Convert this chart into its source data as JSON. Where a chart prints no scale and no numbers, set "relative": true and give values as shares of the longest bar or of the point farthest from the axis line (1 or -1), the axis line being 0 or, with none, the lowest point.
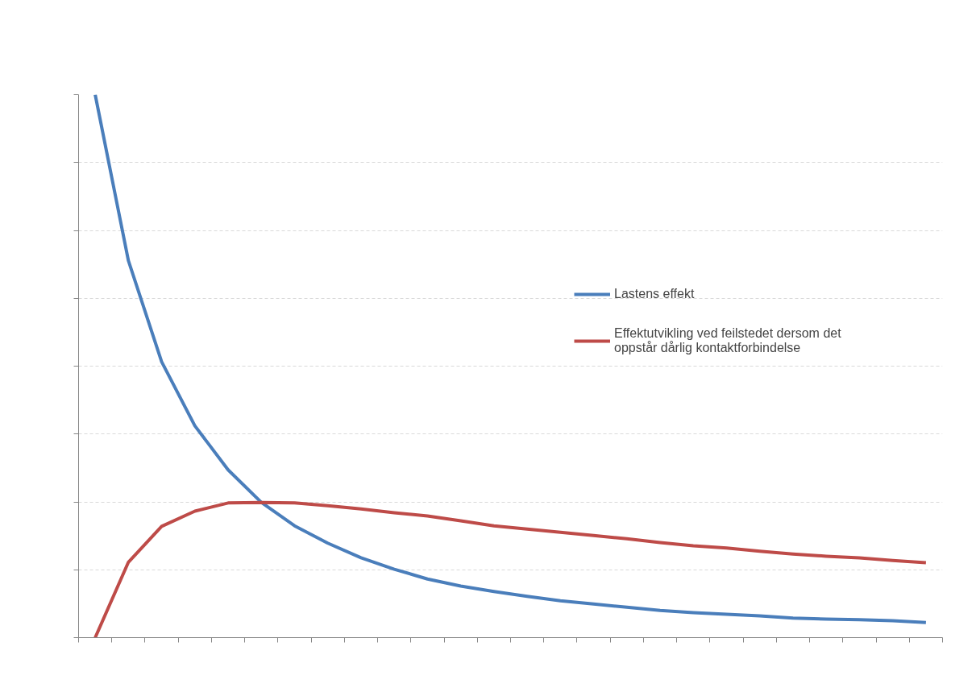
{
  "chart_data": {
    "type": "line",
    "relative": true,
    "grid": "y",
    "legend": "right",
    "tick_labels": false,
    "line_style": "solid",
    "marker": "none",
    "categories": [
      null,
      null,
      null,
      null,
      null,
      null,
      null,
      null,
      null,
      null,
      null,
      null,
      null,
      null,
      null,
      null,
      null,
      null,
      null,
      null,
      null,
      null,
      null,
      null,
      null,
      null
    ],
    "series": [
      {
        "name": "Lastens effekt",
        "color": "#4a7ebb",
        "values": [
          1.0,
          0.694,
          0.508,
          0.39,
          0.309,
          0.249,
          0.206,
          0.174,
          0.147,
          0.126,
          0.108,
          0.095,
          0.085,
          0.076,
          0.068,
          0.062,
          0.056,
          0.05,
          0.046,
          0.043,
          0.04,
          0.036,
          0.034,
          0.033,
          0.031,
          0.028
        ]
      },
      {
        "name": "Effektutvikling ved feilstedet dersom det oppstår dårlig kontaktforbindelse",
        "color": "#be4b48",
        "values": [
          0.0,
          0.139,
          0.205,
          0.233,
          0.248,
          0.249,
          0.248,
          0.243,
          0.237,
          0.23,
          0.224,
          0.215,
          0.206,
          0.2,
          0.194,
          0.188,
          0.182,
          0.175,
          0.169,
          0.165,
          0.159,
          0.154,
          0.15,
          0.147,
          0.142,
          0.138
        ]
      }
    ]
  }
}
